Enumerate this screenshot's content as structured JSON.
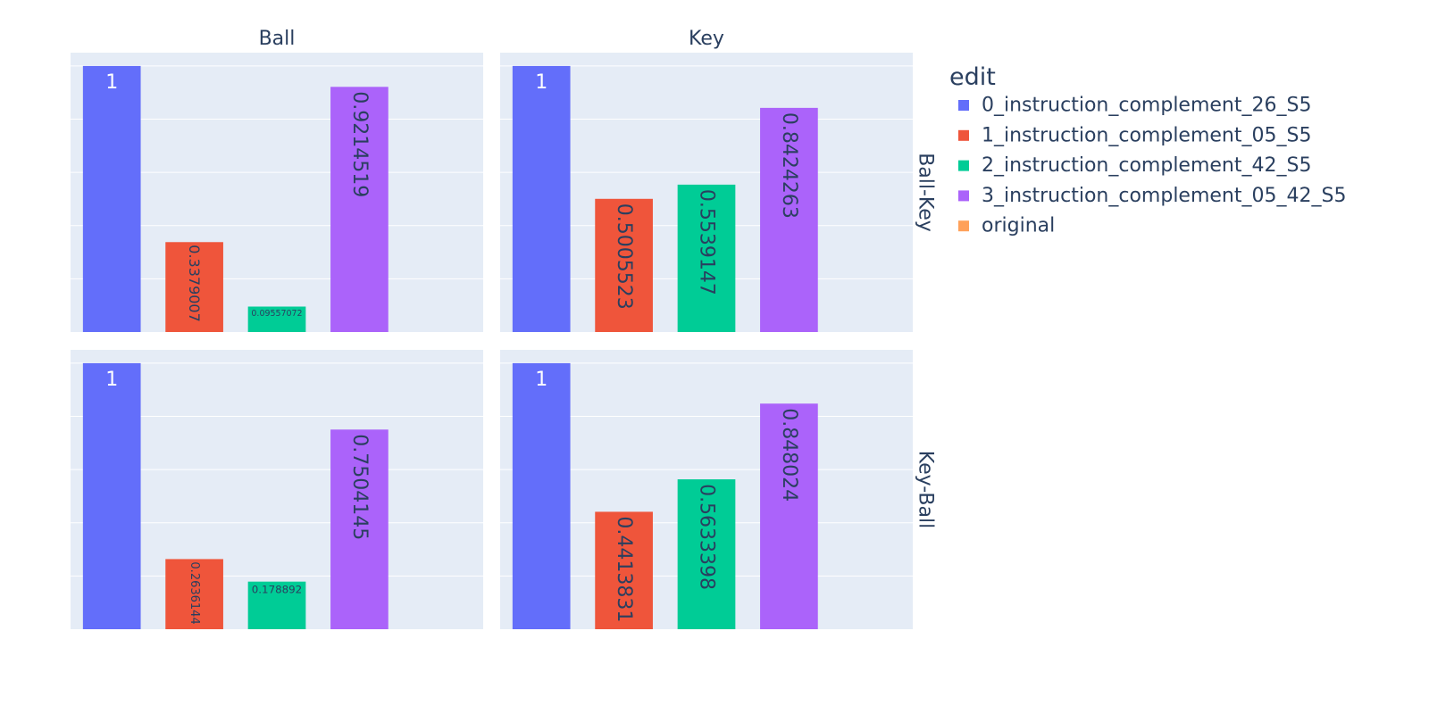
{
  "legend": {
    "title": "edit",
    "items": [
      {
        "name": "0_instruction_complement_26_S5",
        "color": "#636efa"
      },
      {
        "name": "1_instruction_complement_05_S5",
        "color": "#ef553b"
      },
      {
        "name": "2_instruction_complement_42_S5",
        "color": "#00cc96"
      },
      {
        "name": "3_instruction_complement_05_42_S5",
        "color": "#ab63fa"
      },
      {
        "name": "original",
        "color": "#ffa15a"
      }
    ]
  },
  "chart_data": {
    "type": "bar",
    "facet_columns": [
      "Ball",
      "Key"
    ],
    "facet_rows": [
      "Ball-Key",
      "Key-Ball"
    ],
    "categories": [
      "0_instruction_complement_26_S5",
      "1_instruction_complement_05_S5",
      "2_instruction_complement_42_S5",
      "3_instruction_complement_05_42_S5",
      "original"
    ],
    "ylim": [
      0,
      1.05
    ],
    "grid": true,
    "legend_position": "right",
    "panels": [
      {
        "row": "Ball-Key",
        "column": "Ball",
        "values": [
          1,
          0.3379007,
          0.09557072,
          0.9214519,
          null
        ],
        "labels": [
          "1",
          "0.3379007",
          "0.09557072",
          "0.9214519",
          ""
        ]
      },
      {
        "row": "Ball-Key",
        "column": "Key",
        "values": [
          1,
          0.5005523,
          0.5539147,
          0.8424263,
          null
        ],
        "labels": [
          "1",
          "0.5005523",
          "0.5539147",
          "0.8424263",
          ""
        ]
      },
      {
        "row": "Key-Ball",
        "column": "Ball",
        "values": [
          1,
          0.2636144,
          0.178892,
          0.7504145,
          null
        ],
        "labels": [
          "1",
          "0.2636144",
          "0.178892",
          "0.7504145",
          ""
        ]
      },
      {
        "row": "Key-Ball",
        "column": "Key",
        "values": [
          1,
          0.4413831,
          0.5633398,
          0.848024,
          null
        ],
        "labels": [
          "1",
          "0.4413831",
          "0.5633398",
          "0.848024",
          ""
        ]
      }
    ]
  }
}
